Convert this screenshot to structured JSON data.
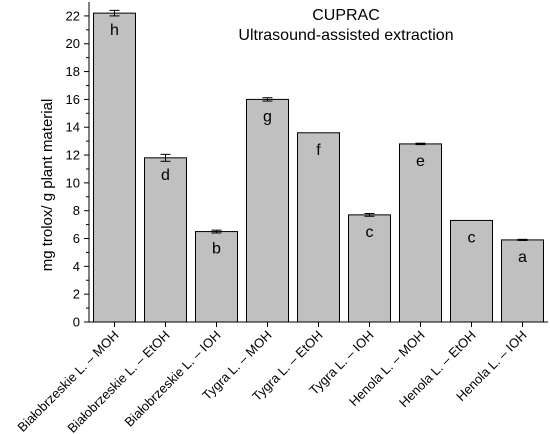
{
  "chart_data": {
    "type": "bar",
    "title": "CUPRAC",
    "subtitle": "Ultrasound-assisted extraction",
    "xlabel": "",
    "ylabel": "mg trolox/ g plant material",
    "ylim": [
      0,
      23
    ],
    "yticks": [
      0,
      2,
      4,
      6,
      8,
      10,
      12,
      14,
      16,
      18,
      20,
      22
    ],
    "categories": [
      "Białobrzeskie L. – MOH",
      "Białobrzeskie L. – EtOH",
      "Białobrzeskie L. – IOH",
      "Tygra L. – MOH",
      "Tygra L. – EtOH",
      "Tygra L. – IOH",
      "Henola L. – MOH",
      "Henola L. – EtOH",
      "Henola L. – IOH"
    ],
    "values": [
      22.2,
      11.8,
      6.5,
      16.0,
      13.6,
      7.7,
      12.8,
      7.3,
      5.9
    ],
    "errors": [
      0.2,
      0.25,
      0.1,
      0.12,
      0.0,
      0.1,
      0.05,
      0.0,
      0.04
    ],
    "letters": [
      "h",
      "d",
      "b",
      "g",
      "f",
      "c",
      "e",
      "c",
      "a"
    ],
    "colors": {
      "bar_fill": "#c0c0c0",
      "bar_stroke": "#000000"
    }
  }
}
